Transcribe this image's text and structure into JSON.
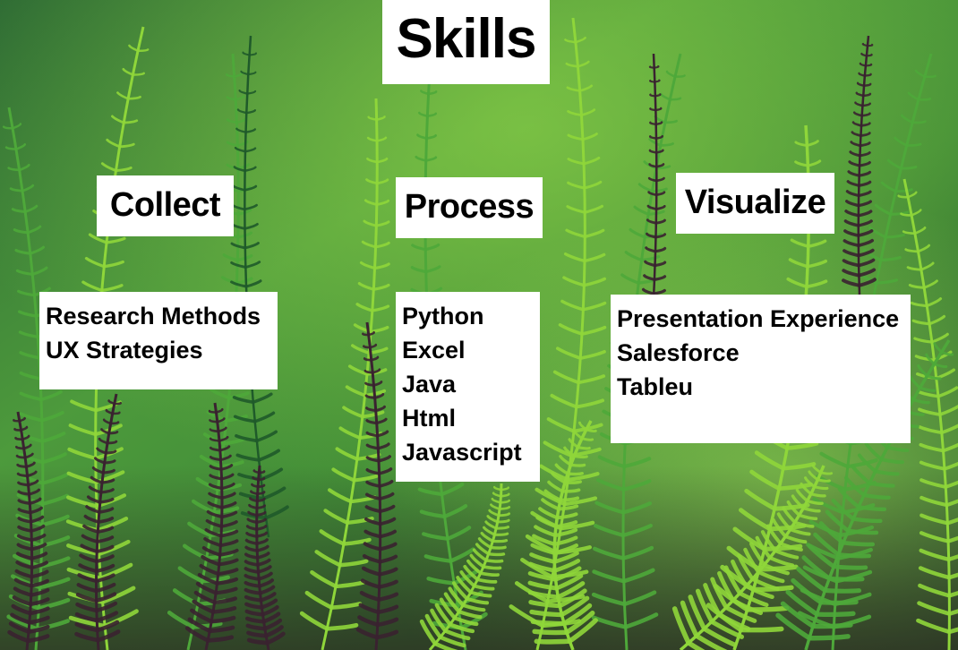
{
  "title": "Skills",
  "columns": [
    {
      "heading": "Collect",
      "items": [
        "Research Methods",
        "UX Strategies"
      ]
    },
    {
      "heading": "Process",
      "items": [
        "Python",
        "Excel",
        "Java",
        "Html",
        "Javascript"
      ]
    },
    {
      "heading": "Visualize",
      "items": [
        "Presentation Experience",
        "Salesforce",
        "Tableu"
      ]
    }
  ],
  "colors": {
    "label_background": "#ffffff",
    "label_text": "#000000",
    "fern_light": "#8fd63a",
    "fern_mid": "#4ea83a",
    "fern_dark": "#1f5a2a",
    "fern_purple": "#3a2230",
    "shadow": "#0f2a16"
  }
}
